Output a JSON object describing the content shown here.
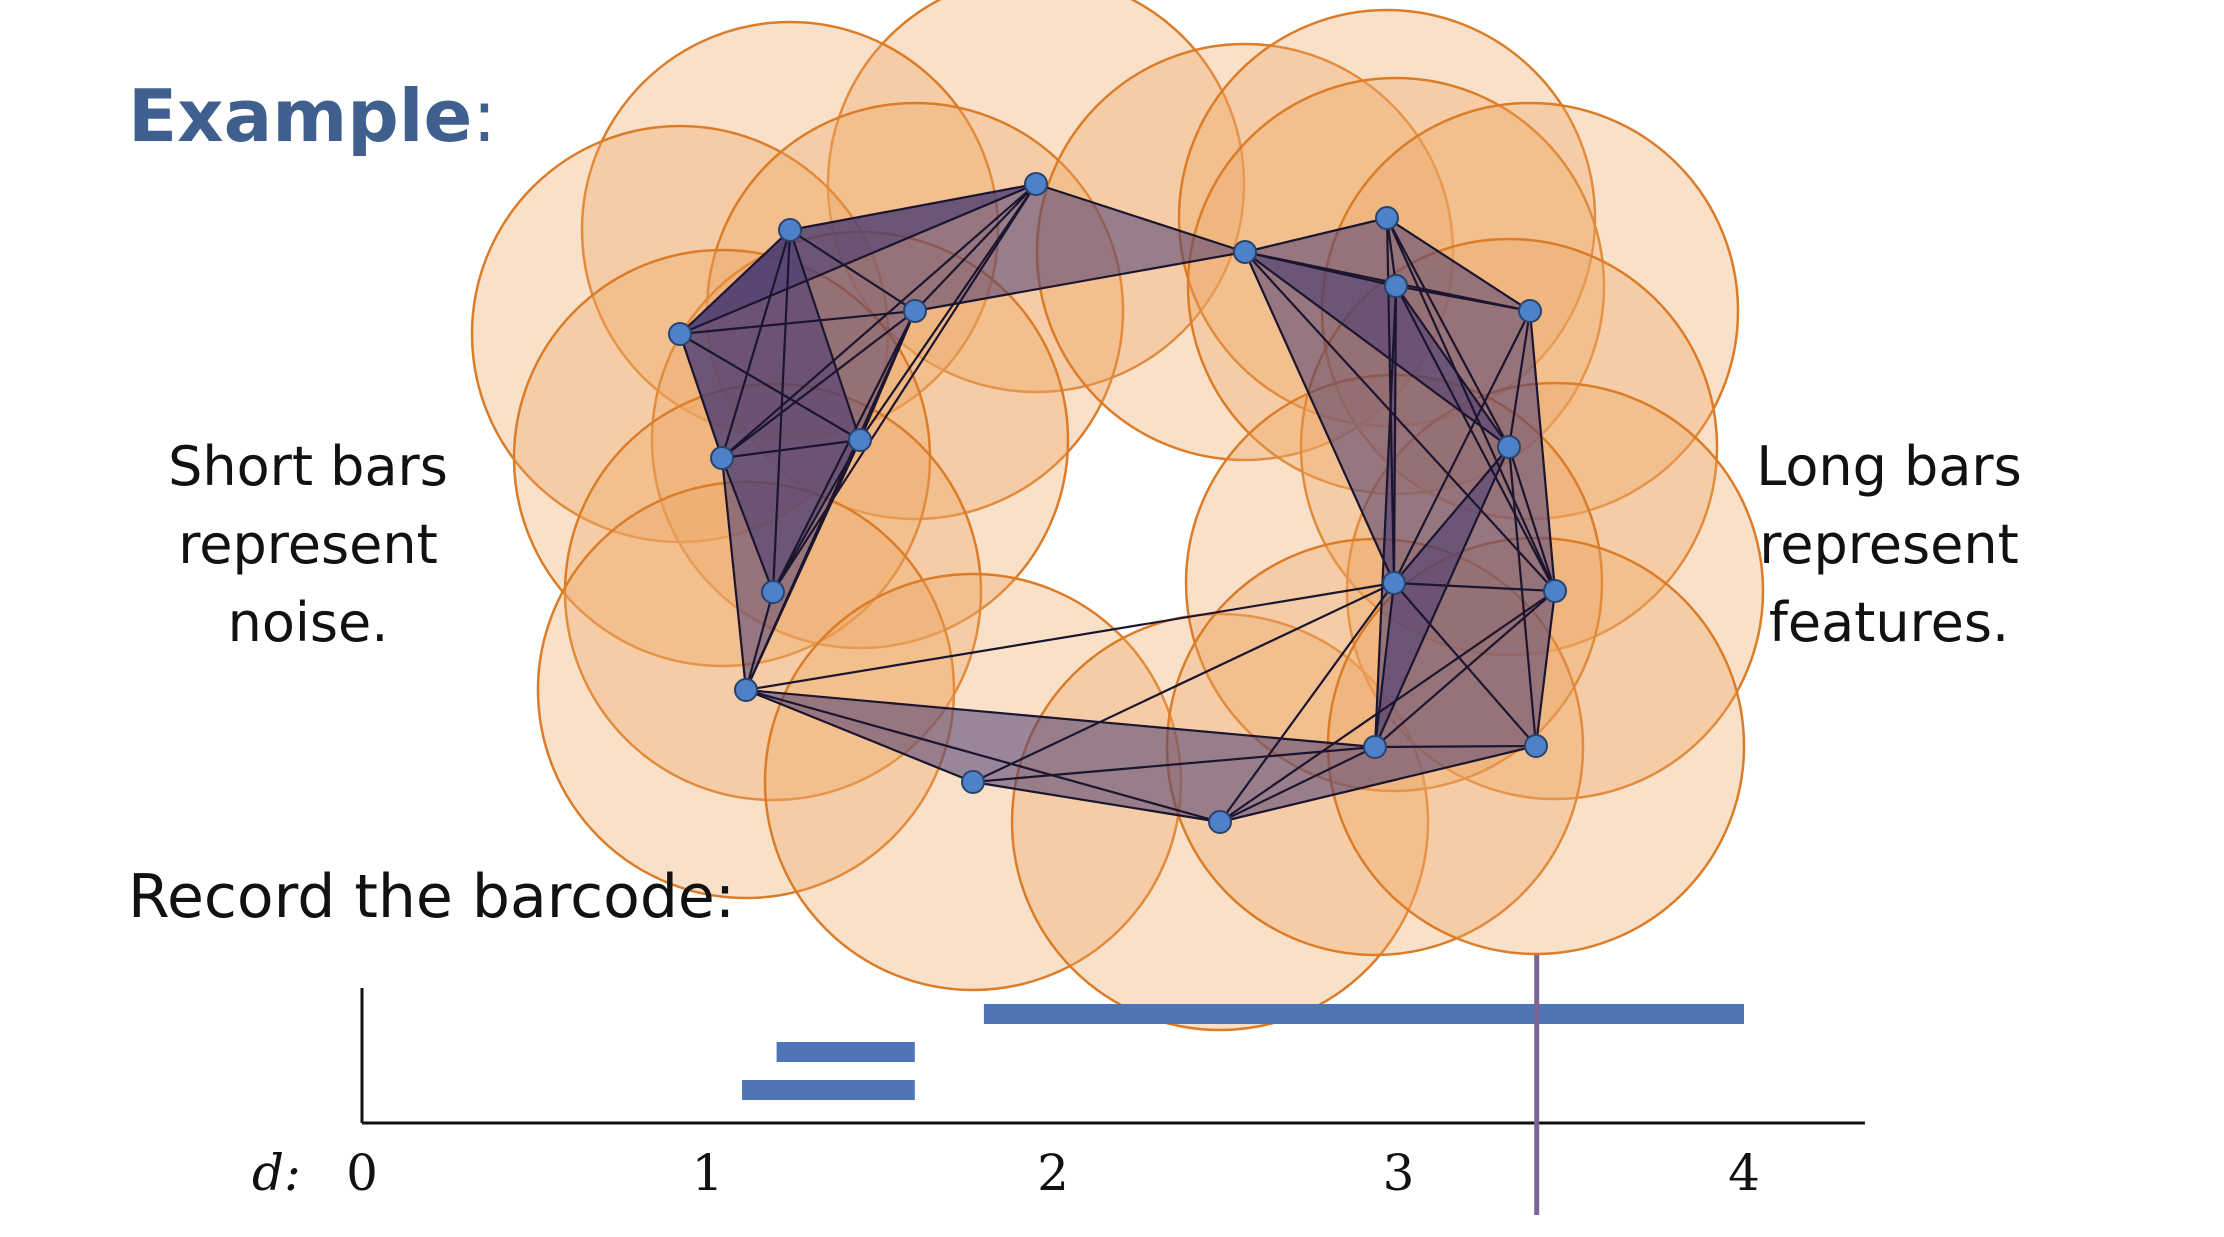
{
  "title": {
    "word": "Example",
    "colon": ":"
  },
  "notes": {
    "left": [
      "Short bars",
      "represent",
      "noise."
    ],
    "right": [
      "Long bars",
      "represent",
      "features."
    ]
  },
  "record_label": "Record the barcode:",
  "colors": {
    "ball_fill": "#eea763",
    "ball_stroke": "#db7d28",
    "complex_fill": "#4b3d73",
    "vertex_fill": "#4f81c8",
    "barcode_bar": "#4f75b6",
    "threshold_line": "#7a6596",
    "title": "#3f5f8f"
  },
  "chart_data": {
    "type": "barcode",
    "xlabel": "d:",
    "xticks": [
      0,
      1,
      2,
      3,
      4
    ],
    "xlim": [
      0,
      4.35
    ],
    "bars": [
      {
        "start": 1.8,
        "end": 4.0
      },
      {
        "start": 1.2,
        "end": 1.6
      },
      {
        "start": 1.1,
        "end": 1.6
      }
    ],
    "threshold": 3.4
  }
}
